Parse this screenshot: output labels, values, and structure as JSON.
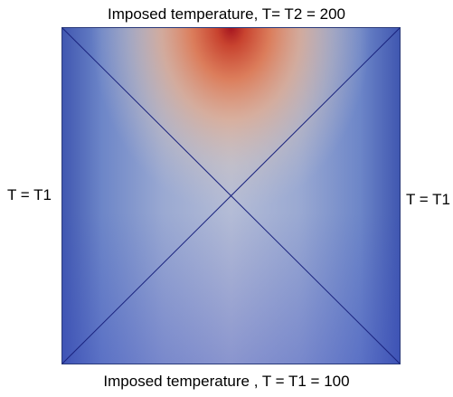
{
  "labels": {
    "top": "Imposed temperature, T= T2 = 200",
    "bottom": "Imposed temperature , T = T1 = 100",
    "left": "T = T1",
    "right": "T = T1"
  },
  "colors": {
    "cold": "#3b4cc0",
    "mid": "#b9bed6",
    "warm": "#e8a07a",
    "hot": "#b40426",
    "mesh_line": "#1a237e",
    "border": "#2a3a7a"
  }
}
